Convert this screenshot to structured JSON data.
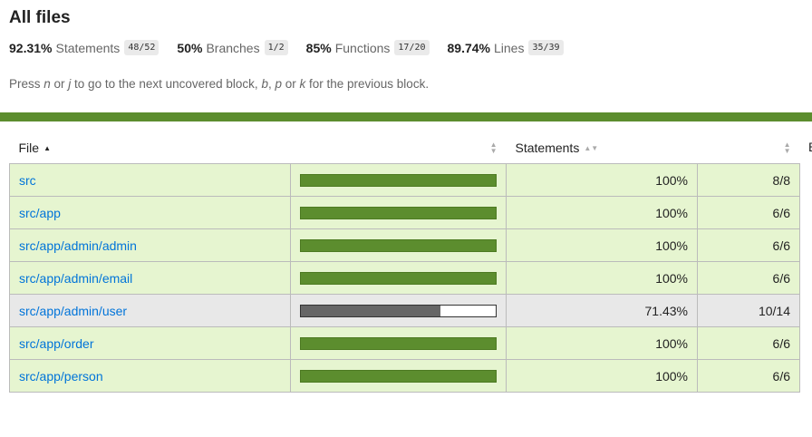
{
  "page_title": "All files",
  "summary": [
    {
      "pct": "92.31%",
      "label": "Statements",
      "fraction": "48/52"
    },
    {
      "pct": "50%",
      "label": "Branches",
      "fraction": "1/2"
    },
    {
      "pct": "85%",
      "label": "Functions",
      "fraction": "17/20"
    },
    {
      "pct": "89.74%",
      "label": "Lines",
      "fraction": "35/39"
    }
  ],
  "hint": {
    "p1": "Press ",
    "k1": "n",
    "p2": " or ",
    "k2": "j",
    "p3": " to go to the next uncovered block, ",
    "k3": "b",
    "p4": ", ",
    "k4": "p",
    "p5": " or ",
    "k5": "k",
    "p6": " for the previous block."
  },
  "table": {
    "headers": {
      "file": "File",
      "statements": "Statements",
      "next_cut": "B"
    },
    "rows": [
      {
        "file": "src",
        "pct": "100%",
        "count": "8/8",
        "coverage": 1.0,
        "level": "high"
      },
      {
        "file": "src/app",
        "pct": "100%",
        "count": "6/6",
        "coverage": 1.0,
        "level": "high"
      },
      {
        "file": "src/app/admin/admin",
        "pct": "100%",
        "count": "6/6",
        "coverage": 1.0,
        "level": "high"
      },
      {
        "file": "src/app/admin/email",
        "pct": "100%",
        "count": "6/6",
        "coverage": 1.0,
        "level": "high"
      },
      {
        "file": "src/app/admin/user",
        "pct": "71.43%",
        "count": "10/14",
        "coverage": 0.7143,
        "level": "low"
      },
      {
        "file": "src/app/order",
        "pct": "100%",
        "count": "6/6",
        "coverage": 1.0,
        "level": "high"
      },
      {
        "file": "src/app/person",
        "pct": "100%",
        "count": "6/6",
        "coverage": 1.0,
        "level": "high"
      }
    ]
  },
  "colors": {
    "accent": "#5c8d2e",
    "high_bg": "#e6f5d0",
    "low_bg": "#e8e8e8",
    "link": "#0074d9"
  }
}
